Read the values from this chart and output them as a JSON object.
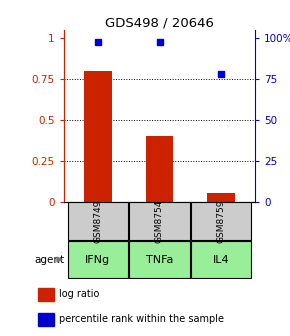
{
  "title": "GDS498 / 20646",
  "samples": [
    "GSM8749",
    "GSM8754",
    "GSM8759"
  ],
  "agents": [
    "IFNg",
    "TNFa",
    "IL4"
  ],
  "log_ratio": [
    0.8,
    0.4,
    0.05
  ],
  "percentile_rank": [
    0.98,
    0.975,
    0.78
  ],
  "bar_color": "#cc2200",
  "dot_color": "#0000cc",
  "left_yticks": [
    0,
    0.25,
    0.5,
    0.75,
    1.0
  ],
  "left_yticklabels": [
    "0",
    "0.25",
    "0.5",
    "0.75",
    "1"
  ],
  "right_yticklabels": [
    "0",
    "25",
    "50",
    "75",
    "100%"
  ],
  "ylim_left": [
    0,
    1.05
  ],
  "sample_box_color": "#cccccc",
  "agent_box_color": "#99ee99",
  "fig_width": 2.9,
  "fig_height": 3.36,
  "dpi": 100
}
